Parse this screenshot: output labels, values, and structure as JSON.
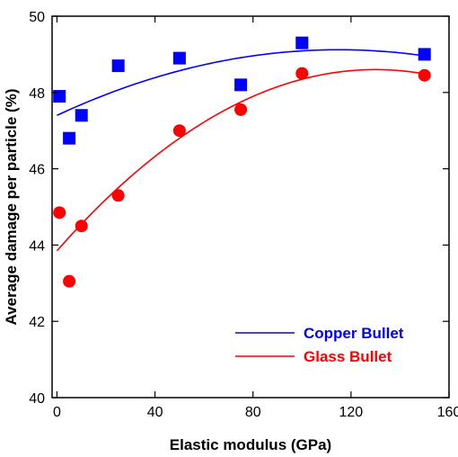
{
  "chart_data": {
    "type": "scatter",
    "xlabel": "Elastic modulus (GPa)",
    "ylabel": "Average damage per particle (%)",
    "xlim": [
      -2,
      160
    ],
    "ylim": [
      40,
      50
    ],
    "xticks": [
      0,
      40,
      80,
      120,
      160
    ],
    "yticks": [
      40,
      42,
      44,
      46,
      48,
      50
    ],
    "grid": false,
    "legend_position": "bottom-right",
    "series": [
      {
        "name": "Copper Bullet",
        "color": "#0000ff",
        "marker": "square",
        "points": [
          [
            1,
            47.9
          ],
          [
            5,
            46.8
          ],
          [
            10,
            47.4
          ],
          [
            25,
            48.7
          ],
          [
            50,
            48.9
          ],
          [
            75,
            48.2
          ],
          [
            100,
            49.3
          ],
          [
            150,
            49.0
          ]
        ],
        "fit": {
          "type": "quadratic",
          "y0": 47.4,
          "peak_x": 115,
          "peak_y": 49.12
        }
      },
      {
        "name": "Glass Bullet",
        "color": "#ff0000",
        "marker": "circle",
        "points": [
          [
            1,
            44.85
          ],
          [
            5,
            43.05
          ],
          [
            10,
            44.5
          ],
          [
            25,
            45.3
          ],
          [
            50,
            47.0
          ],
          [
            75,
            47.55
          ],
          [
            100,
            48.5
          ],
          [
            150,
            48.45
          ]
        ],
        "fit": {
          "type": "quadratic",
          "y0": 43.85,
          "peak_x": 130,
          "peak_y": 48.6
        }
      }
    ]
  }
}
